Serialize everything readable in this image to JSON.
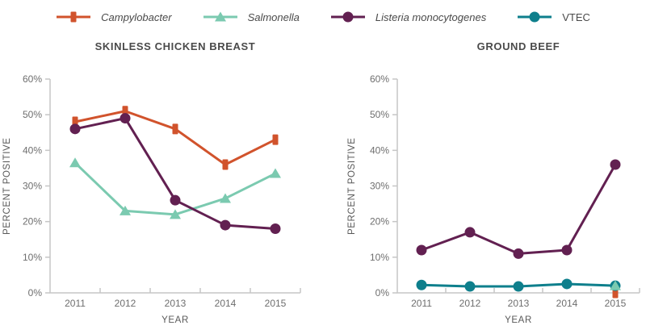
{
  "legend": {
    "items": [
      {
        "label": "Campylobacter",
        "italic": true,
        "marker": "square",
        "color": "#D1532C"
      },
      {
        "label": "Salmonella",
        "italic": true,
        "marker": "triangle",
        "color": "#7BCAB0"
      },
      {
        "label": "Listeria monocytogenes",
        "italic": true,
        "marker": "circle",
        "color": "#622051"
      },
      {
        "label": "VTEC",
        "italic": false,
        "marker": "circle",
        "color": "#0E7F8C"
      }
    ]
  },
  "colors": {
    "campylobacter": "#D1532C",
    "salmonella": "#7BCAB0",
    "listeria": "#622051",
    "vtec": "#0E7F8C",
    "axis": "#C6C6C6",
    "tick_text": "#6E6E6E",
    "title_text": "#4A4A4A"
  },
  "chart_data": [
    {
      "type": "line",
      "title": "SKINLESS CHICKEN BREAST",
      "xlabel": "YEAR",
      "ylabel": "PERCENT POSITIVE",
      "categories": [
        "2011",
        "2012",
        "2013",
        "2014",
        "2015"
      ],
      "ylim": [
        0,
        60
      ],
      "ytick_step": 10,
      "ytick_suffix": "%",
      "grid": false,
      "legend_position": "top-shared",
      "series": [
        {
          "name": "Campylobacter",
          "color": "#D1532C",
          "marker": "square",
          "values": [
            48,
            51,
            46,
            36,
            43
          ]
        },
        {
          "name": "Salmonella",
          "color": "#7BCAB0",
          "marker": "triangle",
          "values": [
            36.5,
            23,
            22,
            26.5,
            33.5
          ]
        },
        {
          "name": "Listeria monocytogenes",
          "color": "#622051",
          "marker": "circle",
          "values": [
            46,
            49,
            26,
            19,
            18
          ]
        }
      ]
    },
    {
      "type": "line",
      "title": "GROUND BEEF",
      "xlabel": "YEAR",
      "ylabel": "PERCENT POSITIVE",
      "categories": [
        "2011",
        "2012",
        "2013",
        "2014",
        "2015"
      ],
      "ylim": [
        0,
        60
      ],
      "ytick_step": 10,
      "ytick_suffix": "%",
      "grid": false,
      "legend_position": "top-shared",
      "series": [
        {
          "name": "Campylobacter",
          "color": "#D1532C",
          "marker": "square",
          "values": [
            null,
            null,
            null,
            null,
            0
          ]
        },
        {
          "name": "VTEC",
          "color": "#0E7F8C",
          "marker": "circle",
          "values": [
            2.2,
            1.8,
            1.8,
            2.5,
            2
          ]
        },
        {
          "name": "Salmonella",
          "color": "#7BCAB0",
          "marker": "triangle",
          "values": [
            null,
            null,
            null,
            null,
            2
          ]
        },
        {
          "name": "Listeria monocytogenes",
          "color": "#622051",
          "marker": "circle",
          "values": [
            12,
            17,
            11,
            12,
            36
          ]
        }
      ]
    }
  ]
}
